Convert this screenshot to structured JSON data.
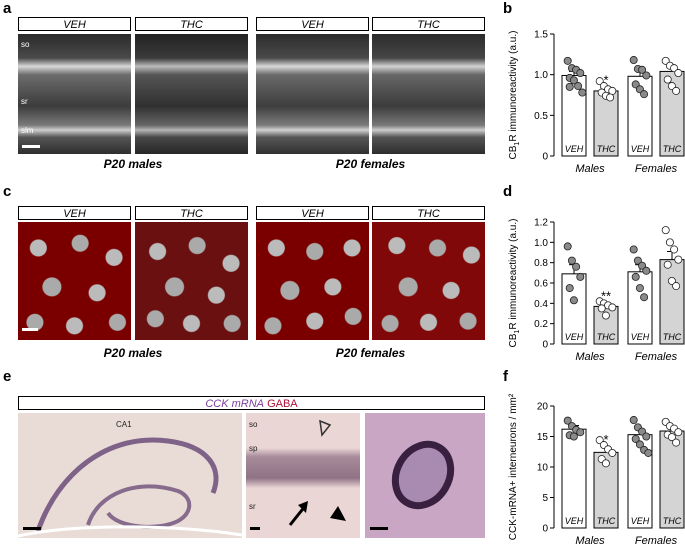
{
  "panels": {
    "a": {
      "label": "a",
      "headers": [
        "VEH",
        "THC",
        "VEH",
        "THC"
      ],
      "captions": [
        "P20 males",
        "P20 females"
      ],
      "layers": [
        "so",
        "sr",
        "slm"
      ]
    },
    "c": {
      "label": "c",
      "headers": [
        "VEH",
        "THC",
        "VEH",
        "THC"
      ],
      "captions": [
        "P20 males",
        "P20 females"
      ]
    },
    "e": {
      "label": "e",
      "header_mrna": "CCK mRNA",
      "header_gaba": "GABA",
      "ca1": "CA1",
      "layers": [
        "so",
        "sp",
        "sr"
      ]
    }
  },
  "chart_data": [
    {
      "panel": "b",
      "type": "bar",
      "ylabel_pre": "CB",
      "ylabel_sub": "1",
      "ylabel_post": "R immunoreactivity (a.u.)",
      "ylim": [
        0,
        1.5
      ],
      "yticks": [
        "0",
        "0.5",
        "1.0",
        "1.5"
      ],
      "groups": [
        "Males",
        "Females"
      ],
      "bar_labels": [
        "VEH",
        "THC",
        "VEH",
        "THC"
      ],
      "values": [
        0.99,
        0.8,
        0.98,
        1.04
      ],
      "sem": [
        0.05,
        0.04,
        0.07,
        0.06
      ],
      "bar_fills": [
        "#ffffff",
        "#d4d4d4",
        "#ffffff",
        "#d4d4d4"
      ],
      "significance": [
        "",
        "*",
        "",
        ""
      ],
      "points": [
        [
          1.17,
          1.08,
          1.06,
          1.02,
          0.96,
          0.93,
          0.86,
          0.78,
          0.85
        ],
        [
          0.92,
          0.86,
          0.82,
          0.8,
          0.78,
          0.74,
          0.72
        ],
        [
          1.18,
          1.07,
          1.06,
          0.99,
          0.88,
          0.82,
          0.76
        ],
        [
          1.17,
          1.11,
          1.08,
          1.02,
          0.94,
          0.86,
          0.8
        ]
      ]
    },
    {
      "panel": "d",
      "type": "bar",
      "ylabel_pre": "CB",
      "ylabel_sub": "1",
      "ylabel_post": "R immunoreactivity (a.u.)",
      "ylim": [
        0,
        1.2
      ],
      "yticks": [
        "0",
        "0.2",
        "0.4",
        "0.6",
        "0.8",
        "1.0",
        "1.2"
      ],
      "groups": [
        "Males",
        "Females"
      ],
      "bar_labels": [
        "VEH",
        "THC",
        "VEH",
        "THC"
      ],
      "values": [
        0.69,
        0.37,
        0.71,
        0.83
      ],
      "sem": [
        0.09,
        0.03,
        0.07,
        0.08
      ],
      "bar_fills": [
        "#ffffff",
        "#d4d4d4",
        "#ffffff",
        "#d4d4d4"
      ],
      "significance": [
        "",
        "**",
        "",
        ""
      ],
      "points": [
        [
          0.96,
          0.82,
          0.76,
          0.66,
          0.55,
          0.43
        ],
        [
          0.42,
          0.4,
          0.38,
          0.36,
          0.35,
          0.28
        ],
        [
          0.93,
          0.82,
          0.77,
          0.72,
          0.66,
          0.55,
          0.46
        ],
        [
          1.12,
          1.0,
          0.93,
          0.83,
          0.78,
          0.62,
          0.57
        ]
      ]
    },
    {
      "panel": "f",
      "type": "bar",
      "ylabel": "CCK-mRNA+ interneurons / mm²",
      "ylim": [
        0,
        20
      ],
      "yticks": [
        "0",
        "5",
        "10",
        "15",
        "20"
      ],
      "groups": [
        "Males",
        "Females"
      ],
      "bar_labels": [
        "VEH",
        "THC",
        "VEH",
        "THC"
      ],
      "values": [
        16.2,
        12.4,
        15.3,
        15.9
      ],
      "sem": [
        0.6,
        0.9,
        0.8,
        0.7
      ],
      "bar_fills": [
        "#ffffff",
        "#d4d4d4",
        "#ffffff",
        "#d4d4d4"
      ],
      "significance": [
        "",
        "*",
        "",
        ""
      ],
      "points": [
        [
          17.6,
          16.7,
          16.1,
          15.7,
          15.2,
          15.0
        ],
        [
          14.4,
          13.6,
          12.9,
          12.3,
          11.3,
          10.6
        ],
        [
          17.7,
          16.5,
          15.8,
          15.0,
          14.6,
          13.7,
          12.8,
          12.3
        ],
        [
          17.4,
          16.7,
          16.3,
          15.7,
          15.3,
          14.9,
          14.0
        ]
      ]
    }
  ]
}
